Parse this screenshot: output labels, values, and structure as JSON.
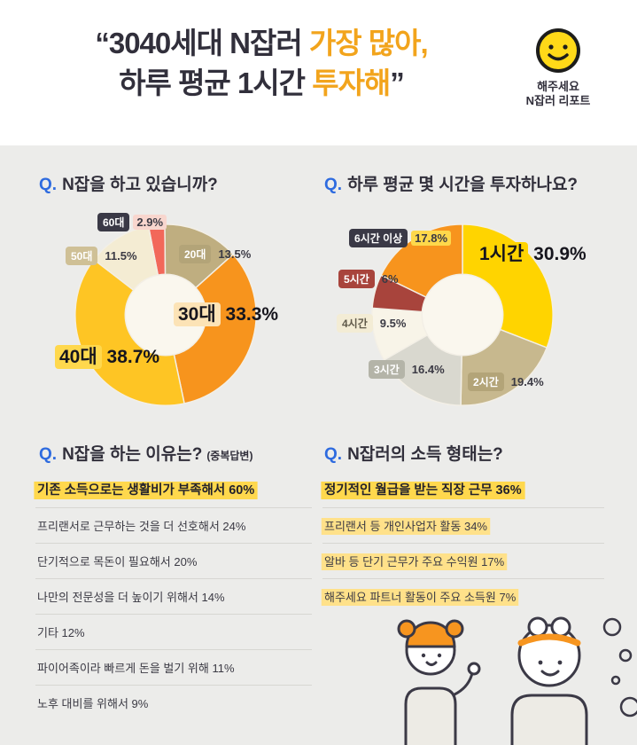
{
  "meta": {
    "background": "#ececea",
    "header_background": "#ffffff",
    "accent_color": "#f2a41c",
    "dark_color": "#312f3b",
    "question_blue": "#2e6bdf"
  },
  "header": {
    "title": {
      "l1_dark": "“3040세대 N잡러",
      "l1_accent": " 가장 많아,",
      "l2_dark": "하루 평균 1시간",
      "l2_accent": " 투자해",
      "l2_close": "”"
    },
    "logo": {
      "brand": "해주세요",
      "subtitle": "N잡러 리포트",
      "smiley_color": "#ffd918"
    }
  },
  "questions": [
    {
      "q": "Q.",
      "text": "N잡을 하고 있습니까?"
    },
    {
      "q": "Q.",
      "text": "하루 평균 몇 시간을 투자하나요?"
    },
    {
      "q": "Q.",
      "text": "N잡을 하는 이유는?",
      "note": "(중복답변)"
    },
    {
      "q": "Q.",
      "text": "N잡러의 소득 형태는?"
    }
  ],
  "chart_data": [
    {
      "type": "pie",
      "variant": "donut",
      "title": "N잡을 하고 있습니까?",
      "start_angle": -101,
      "segments": [
        {
          "label": "60대",
          "value": 2.9,
          "display": "2.9%",
          "color": "#f2685a"
        },
        {
          "label": "20대",
          "value": 13.5,
          "display": "13.5%",
          "color": "#bfae80"
        },
        {
          "label": "30대",
          "value": 33.3,
          "display": "33.3%",
          "color": "#f7941d"
        },
        {
          "label": "40대",
          "value": 38.7,
          "display": "38.7%",
          "color": "#fec524"
        },
        {
          "label": "50대",
          "value": 11.5,
          "display": "11.5%",
          "color": "#f4ecd3"
        }
      ]
    },
    {
      "type": "pie",
      "variant": "donut",
      "title": "하루 평균 몇 시간을 투자하나요?",
      "start_angle": -90,
      "segments": [
        {
          "label": "1시간",
          "value": 30.9,
          "display": "30.9%",
          "color": "#ffd400"
        },
        {
          "label": "2시간",
          "value": 19.4,
          "display": "19.4%",
          "color": "#c7b88e"
        },
        {
          "label": "3시간",
          "value": 16.4,
          "display": "16.4%",
          "color": "#d9d8cf"
        },
        {
          "label": "4시간",
          "value": 9.5,
          "display": "9.5%",
          "color": "#f8f4e8"
        },
        {
          "label": "5시간",
          "value": 6,
          "display": "6%",
          "color": "#a8443c"
        },
        {
          "label": "6시간 이상",
          "value": 17.8,
          "display": "17.8%",
          "color": "#f7941d"
        }
      ]
    },
    {
      "type": "table",
      "title": "N잡을 하는 이유는? (중복답변)",
      "items": [
        {
          "text": "기존 소득으로는 생활비가 부족해서 60%",
          "value": 60,
          "em": true,
          "hl": true,
          "hl_color": "#ffd84d"
        },
        {
          "text": "프리랜서로 근무하는 것을 더 선호해서 24%",
          "value": 24,
          "em": false,
          "hl": false
        },
        {
          "text": "단기적으로 목돈이 필요해서 20%",
          "value": 20,
          "em": false,
          "hl": false
        },
        {
          "text": "나만의 전문성을 더 높이기 위해서 14%",
          "value": 14,
          "em": false,
          "hl": false
        },
        {
          "text": "기타 12%",
          "value": 12,
          "em": false,
          "hl": false
        },
        {
          "text": "파이어족이라 빠르게 돈을 벌기 위해 11%",
          "value": 11,
          "em": false,
          "hl": false
        },
        {
          "text": "노후 대비를 위해서 9%",
          "value": 9,
          "em": false,
          "hl": false
        }
      ]
    },
    {
      "type": "table",
      "title": "N잡러의 소득 형태는?",
      "items": [
        {
          "text": "정기적인 월급을 받는 직장 근무 36%",
          "value": 36,
          "em": true,
          "hl": true,
          "hl_color": "#ffd84d"
        },
        {
          "text": "프리랜서 등 개인사업자 활동 34%",
          "value": 34,
          "em": false,
          "hl": true,
          "hl_color": "#ffe18a"
        },
        {
          "text": "알바 등 단기 근무가 주요 수익원 17%",
          "value": 17,
          "em": false,
          "hl": true,
          "hl_color": "#ffe18a"
        },
        {
          "text": "해주세요 파트너 활동이 주요 소득원 7%",
          "value": 7,
          "em": false,
          "hl": true,
          "hl_color": "#ffe18a"
        }
      ]
    }
  ]
}
